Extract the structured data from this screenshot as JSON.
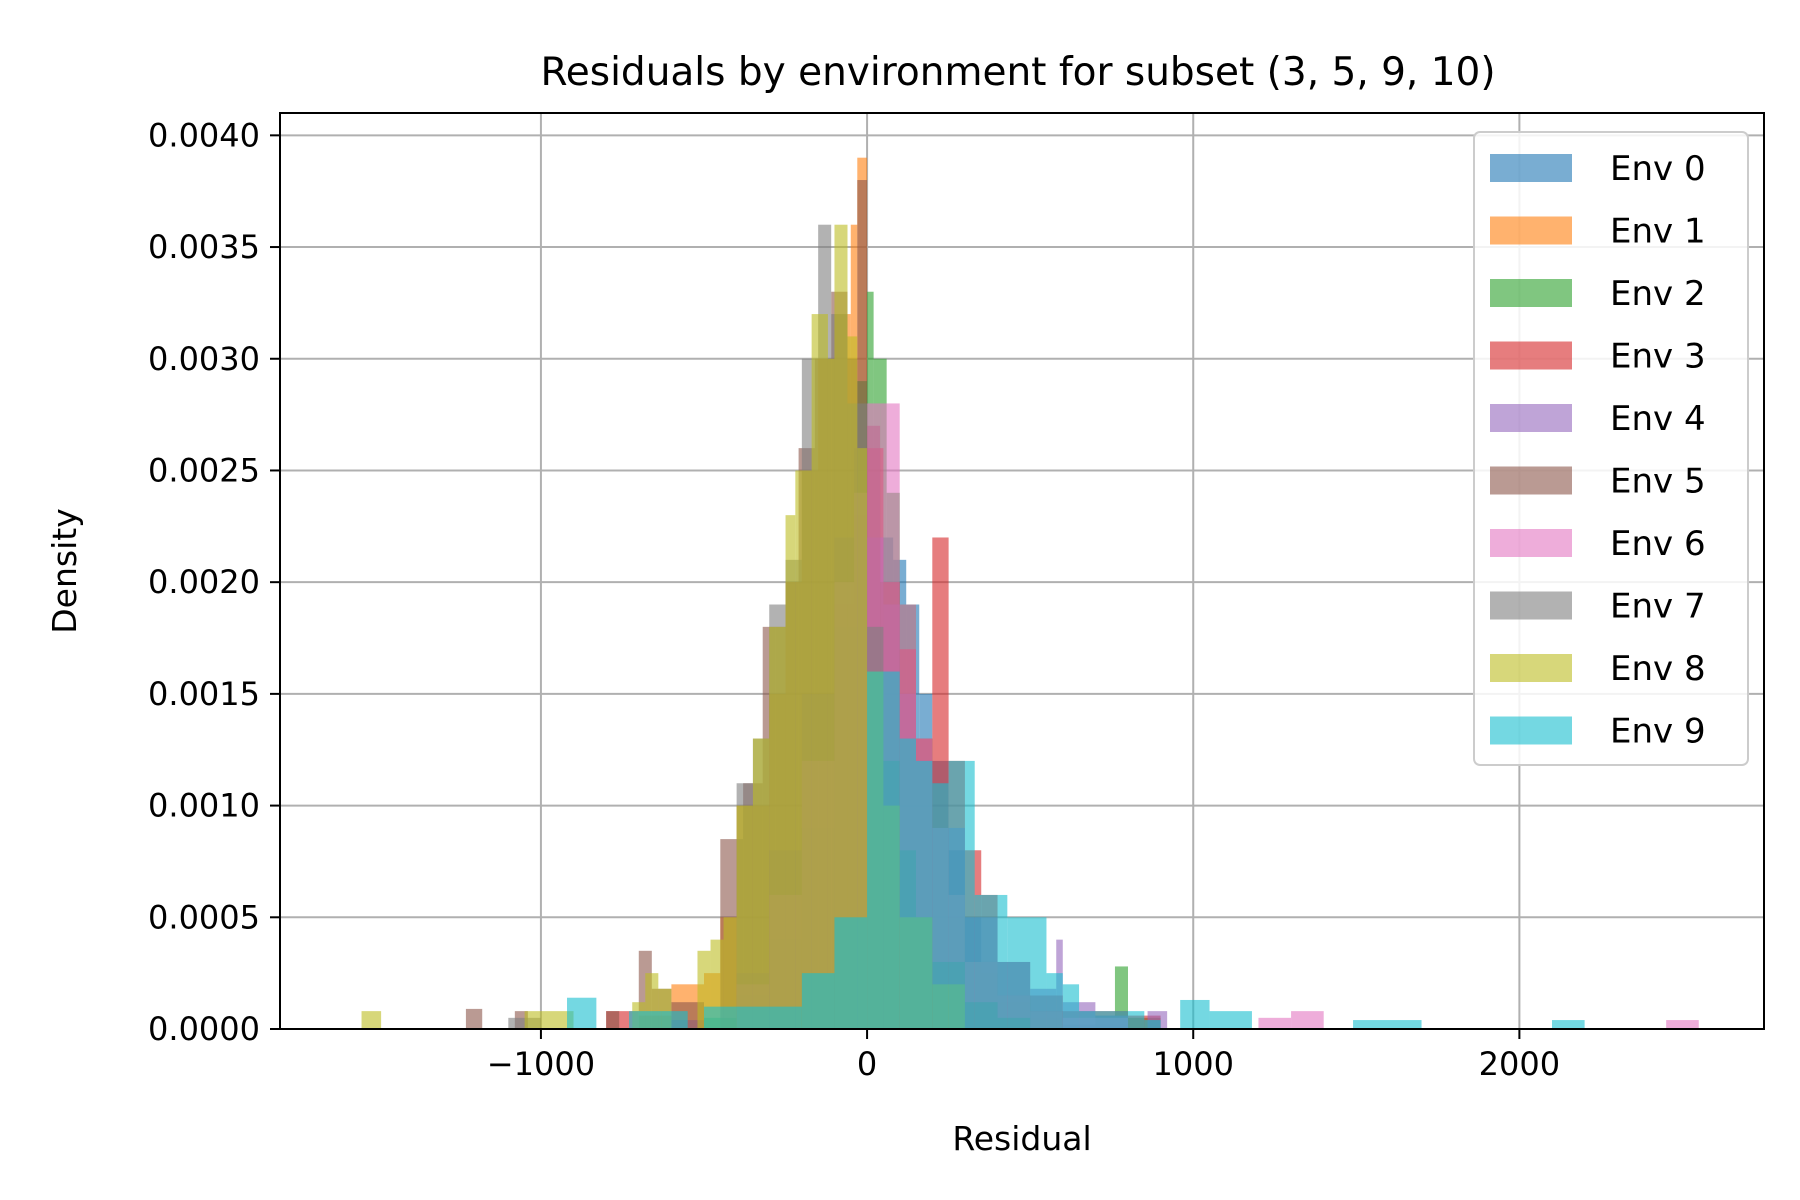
{
  "chart_data": {
    "type": "bar",
    "subtype": "overlaid-histogram",
    "title": "Residuals by environment for subset (3, 5, 9, 10)",
    "xlabel": "Residual",
    "ylabel": "Density",
    "xlim": [
      -1800,
      2750
    ],
    "ylim": [
      0,
      0.0041
    ],
    "xticks": [
      -1000,
      0,
      1000,
      2000
    ],
    "xtick_labels": [
      "−1000",
      "0",
      "1000",
      "2000"
    ],
    "yticks": [
      0,
      0.0005,
      0.001,
      0.0015,
      0.002,
      0.0025,
      0.003,
      0.0035,
      0.004
    ],
    "ytick_labels": [
      "0.0000",
      "0.0005",
      "0.0010",
      "0.0015",
      "0.0020",
      "0.0025",
      "0.0030",
      "0.0035",
      "0.0040"
    ],
    "grid": true,
    "legend_position": "top-right",
    "opacity": 0.6,
    "series": [
      {
        "name": "Env 0",
        "color": "#1f77b4",
        "bins": [
          [
            -300,
            -200,
            2e-05
          ],
          [
            -200,
            -100,
            0.0002
          ],
          [
            -100,
            0,
            0.0008
          ],
          [
            0,
            40,
            0.0018
          ],
          [
            40,
            80,
            0.0022
          ],
          [
            80,
            120,
            0.0021
          ],
          [
            120,
            160,
            0.0019
          ],
          [
            160,
            200,
            0.0015
          ],
          [
            200,
            250,
            0.0012
          ],
          [
            250,
            300,
            0.0008
          ],
          [
            300,
            350,
            0.0005
          ],
          [
            350,
            400,
            0.00025
          ],
          [
            400,
            500,
            0.00012
          ],
          [
            500,
            600,
            5e-05
          ],
          [
            600,
            800,
            2e-05
          ]
        ]
      },
      {
        "name": "Env 1",
        "color": "#ff7f0e",
        "bins": [
          [
            -700,
            -600,
            6e-05
          ],
          [
            -600,
            -500,
            0.0002
          ],
          [
            -500,
            -450,
            0.00025
          ],
          [
            -450,
            -400,
            0.0005
          ],
          [
            -400,
            -300,
            0.001
          ],
          [
            -300,
            -250,
            0.0015
          ],
          [
            -250,
            -200,
            0.002
          ],
          [
            -200,
            -150,
            0.0025
          ],
          [
            -150,
            -100,
            0.003
          ],
          [
            -100,
            -50,
            0.0032
          ],
          [
            -50,
            -30,
            0.0036
          ],
          [
            -30,
            0,
            0.0039
          ],
          [
            0,
            50,
            0.0022
          ],
          [
            50,
            100,
            0.0015
          ],
          [
            100,
            150,
            0.0009
          ],
          [
            150,
            200,
            0.0005
          ],
          [
            200,
            300,
            0.0002
          ],
          [
            300,
            400,
            5e-05
          ]
        ]
      },
      {
        "name": "Env 2",
        "color": "#2ca02c",
        "bins": [
          [
            -500,
            -400,
            5e-05
          ],
          [
            -400,
            -300,
            0.00015
          ],
          [
            -300,
            -200,
            0.0004
          ],
          [
            -200,
            -100,
            0.0009
          ],
          [
            -100,
            -30,
            0.0018
          ],
          [
            -30,
            0,
            0.0029
          ],
          [
            0,
            20,
            0.0033
          ],
          [
            20,
            60,
            0.003
          ],
          [
            60,
            100,
            0.0024
          ],
          [
            100,
            150,
            0.0019
          ],
          [
            150,
            200,
            0.0013
          ],
          [
            200,
            250,
            0.0009
          ],
          [
            250,
            300,
            0.0005
          ],
          [
            300,
            400,
            0.0003
          ],
          [
            400,
            500,
            0.00015
          ],
          [
            500,
            600,
            8e-05
          ],
          [
            700,
            760,
            6e-05
          ],
          [
            760,
            800,
            0.00028
          ],
          [
            800,
            900,
            5e-05
          ]
        ]
      },
      {
        "name": "Env 3",
        "color": "#d62728",
        "bins": [
          [
            -800,
            -700,
            8e-05
          ],
          [
            -400,
            -300,
            0.0002
          ],
          [
            -300,
            -200,
            0.0006
          ],
          [
            -200,
            -100,
            0.0012
          ],
          [
            -100,
            -40,
            0.0019
          ],
          [
            -40,
            0,
            0.0023
          ],
          [
            0,
            50,
            0.0026
          ],
          [
            50,
            100,
            0.002
          ],
          [
            100,
            150,
            0.0017
          ],
          [
            150,
            200,
            0.0013
          ],
          [
            200,
            250,
            0.0022
          ],
          [
            250,
            300,
            0.0012
          ],
          [
            300,
            350,
            0.0008
          ],
          [
            350,
            400,
            0.0006
          ],
          [
            400,
            500,
            0.0003
          ],
          [
            500,
            600,
            0.00015
          ],
          [
            600,
            800,
            8e-05
          ],
          [
            800,
            900,
            6e-05
          ]
        ]
      },
      {
        "name": "Env 4",
        "color": "#9467bd",
        "bins": [
          [
            -600,
            -500,
            4e-05
          ],
          [
            -400,
            -300,
            0.00025
          ],
          [
            -300,
            -200,
            0.0008
          ],
          [
            -200,
            -100,
            0.0015
          ],
          [
            -100,
            -40,
            0.0022
          ],
          [
            -40,
            0,
            0.0026
          ],
          [
            0,
            50,
            0.0022
          ],
          [
            50,
            100,
            0.0019
          ],
          [
            100,
            150,
            0.0015
          ],
          [
            150,
            200,
            0.0012
          ],
          [
            200,
            300,
            0.0009
          ],
          [
            300,
            400,
            0.0005
          ],
          [
            400,
            500,
            0.0003
          ],
          [
            500,
            580,
            0.00018
          ],
          [
            580,
            600,
            0.0004
          ],
          [
            600,
            700,
            0.00012
          ],
          [
            700,
            800,
            6e-05
          ],
          [
            860,
            920,
            8e-05
          ]
        ]
      },
      {
        "name": "Env 5",
        "color": "#8c564b",
        "bins": [
          [
            -1230,
            -1180,
            9e-05
          ],
          [
            -1080,
            -1040,
            8e-05
          ],
          [
            -800,
            -760,
            8e-05
          ],
          [
            -700,
            -660,
            0.00035
          ],
          [
            -660,
            -600,
            0.00018
          ],
          [
            -600,
            -500,
            0.00012
          ],
          [
            -450,
            -380,
            0.00085
          ],
          [
            -380,
            -320,
            0.0011
          ],
          [
            -320,
            -280,
            0.0018
          ],
          [
            -280,
            -250,
            0.0018
          ],
          [
            -250,
            -210,
            0.002
          ],
          [
            -210,
            -160,
            0.0026
          ],
          [
            -160,
            -110,
            0.003
          ],
          [
            -110,
            -60,
            0.0033
          ],
          [
            -60,
            -30,
            0.003
          ],
          [
            -30,
            0,
            0.0038
          ],
          [
            0,
            40,
            0.0027
          ],
          [
            40,
            100,
            0.002
          ],
          [
            100,
            150,
            0.0015
          ],
          [
            150,
            200,
            0.0012
          ],
          [
            200,
            250,
            0.0009
          ],
          [
            250,
            300,
            0.0006
          ],
          [
            300,
            400,
            0.0003
          ],
          [
            400,
            500,
            0.00015
          ],
          [
            500,
            600,
            8e-05
          ]
        ]
      },
      {
        "name": "Env 6",
        "color": "#e377c2",
        "bins": [
          [
            -400,
            -300,
            0.0002
          ],
          [
            -300,
            -200,
            0.0006
          ],
          [
            -200,
            -100,
            0.0012
          ],
          [
            -100,
            -40,
            0.002
          ],
          [
            -40,
            0,
            0.0024
          ],
          [
            0,
            40,
            0.0028
          ],
          [
            40,
            100,
            0.0028
          ],
          [
            100,
            150,
            0.0019
          ],
          [
            150,
            200,
            0.0013
          ],
          [
            200,
            250,
            0.0009
          ],
          [
            250,
            300,
            0.0006
          ],
          [
            300,
            400,
            0.0003
          ],
          [
            400,
            500,
            0.00015
          ],
          [
            500,
            600,
            8e-05
          ],
          [
            600,
            800,
            5e-05
          ],
          [
            1200,
            1300,
            5e-05
          ],
          [
            1300,
            1400,
            8e-05
          ],
          [
            2450,
            2550,
            4e-05
          ]
        ]
      },
      {
        "name": "Env 7",
        "color": "#7f7f7f",
        "bins": [
          [
            -1100,
            -1000,
            5e-05
          ],
          [
            -400,
            -350,
            0.0011
          ],
          [
            -350,
            -300,
            0.0013
          ],
          [
            -300,
            -250,
            0.0019
          ],
          [
            -250,
            -200,
            0.0021
          ],
          [
            -200,
            -150,
            0.003
          ],
          [
            -150,
            -110,
            0.0036
          ],
          [
            -110,
            -60,
            0.0032
          ],
          [
            -60,
            0,
            0.0028
          ],
          [
            0,
            50,
            0.0018
          ],
          [
            50,
            100,
            0.0012
          ],
          [
            100,
            150,
            0.0008
          ],
          [
            150,
            200,
            0.0005
          ],
          [
            200,
            300,
            0.0003
          ],
          [
            300,
            400,
            0.00012
          ],
          [
            400,
            500,
            5e-05
          ]
        ]
      },
      {
        "name": "Env 8",
        "color": "#bcbd22",
        "bins": [
          [
            -1550,
            -1490,
            8e-05
          ],
          [
            -1050,
            -1000,
            8e-05
          ],
          [
            -1000,
            -900,
            8e-05
          ],
          [
            -720,
            -680,
            0.00012
          ],
          [
            -680,
            -640,
            0.00025
          ],
          [
            -640,
            -600,
            0.00018
          ],
          [
            -520,
            -480,
            0.00035
          ],
          [
            -480,
            -440,
            0.0004
          ],
          [
            -440,
            -400,
            0.0005
          ],
          [
            -400,
            -350,
            0.001
          ],
          [
            -350,
            -300,
            0.0013
          ],
          [
            -300,
            -250,
            0.0018
          ],
          [
            -250,
            -220,
            0.0023
          ],
          [
            -220,
            -170,
            0.0025
          ],
          [
            -170,
            -120,
            0.0032
          ],
          [
            -120,
            -100,
            0.003
          ],
          [
            -100,
            -60,
            0.0036
          ],
          [
            -60,
            -30,
            0.0031
          ],
          [
            -30,
            0,
            0.0026
          ],
          [
            0,
            50,
            0.0016
          ],
          [
            50,
            100,
            0.001
          ],
          [
            100,
            200,
            0.0005
          ],
          [
            200,
            300,
            0.0002
          ]
        ]
      },
      {
        "name": "Env 9",
        "color": "#17becf",
        "bins": [
          [
            -920,
            -830,
            0.00014
          ],
          [
            -730,
            -630,
            8e-05
          ],
          [
            -630,
            -550,
            8e-05
          ],
          [
            -500,
            -400,
            0.0001
          ],
          [
            -400,
            -200,
            0.0001
          ],
          [
            -200,
            -100,
            0.00025
          ],
          [
            -100,
            0,
            0.0005
          ],
          [
            0,
            100,
            0.0016
          ],
          [
            100,
            150,
            0.0013
          ],
          [
            150,
            200,
            0.0012
          ],
          [
            200,
            250,
            0.0011
          ],
          [
            250,
            330,
            0.0012
          ],
          [
            330,
            430,
            0.0006
          ],
          [
            430,
            550,
            0.0005
          ],
          [
            550,
            600,
            0.00025
          ],
          [
            600,
            650,
            0.0002
          ],
          [
            650,
            850,
            8e-05
          ],
          [
            850,
            900,
            4e-05
          ],
          [
            960,
            1050,
            0.00013
          ],
          [
            1050,
            1180,
            8e-05
          ],
          [
            1490,
            1700,
            4e-05
          ],
          [
            2100,
            2200,
            4e-05
          ]
        ]
      }
    ]
  }
}
